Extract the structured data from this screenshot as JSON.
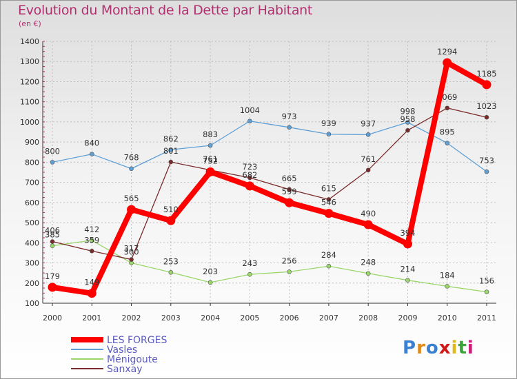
{
  "title": "Evolution du Montant de la Dette par Habitant",
  "subtitle": "(en €)",
  "logo": "Proxiti",
  "chart_data": {
    "type": "line",
    "title": "Evolution du Montant de la Dette par Habitant",
    "subtitle": "(en €)",
    "x": [
      "2000",
      "2001",
      "2002",
      "2003",
      "2004",
      "2005",
      "2006",
      "2007",
      "2008",
      "2009",
      "2010",
      "2011"
    ],
    "ylim": [
      100,
      1400
    ],
    "yticks": [
      100,
      200,
      300,
      400,
      500,
      600,
      700,
      800,
      900,
      1000,
      1100,
      1200,
      1300,
      1400
    ],
    "grid": true,
    "legend": "bottom-left",
    "series": [
      {
        "name": "LES FORGES",
        "color": "#ff0000",
        "values": [
          179,
          149,
          565,
          510,
          752,
          682,
          599,
          546,
          490,
          394,
          1294,
          1185
        ]
      },
      {
        "name": "Vasles",
        "color": "#5e9fd6",
        "values": [
          800,
          840,
          768,
          862,
          883,
          1004,
          973,
          939,
          937,
          998,
          895,
          753
        ]
      },
      {
        "name": "Ménigoute",
        "color": "#9ad66a",
        "values": [
          385,
          412,
          300,
          253,
          203,
          243,
          256,
          284,
          248,
          214,
          184,
          156
        ]
      },
      {
        "name": "Sanxay",
        "color": "#7a2a2a",
        "values": [
          406,
          359,
          317,
          801,
          761,
          723,
          665,
          615,
          761,
          958,
          1069,
          1023
        ]
      }
    ]
  }
}
